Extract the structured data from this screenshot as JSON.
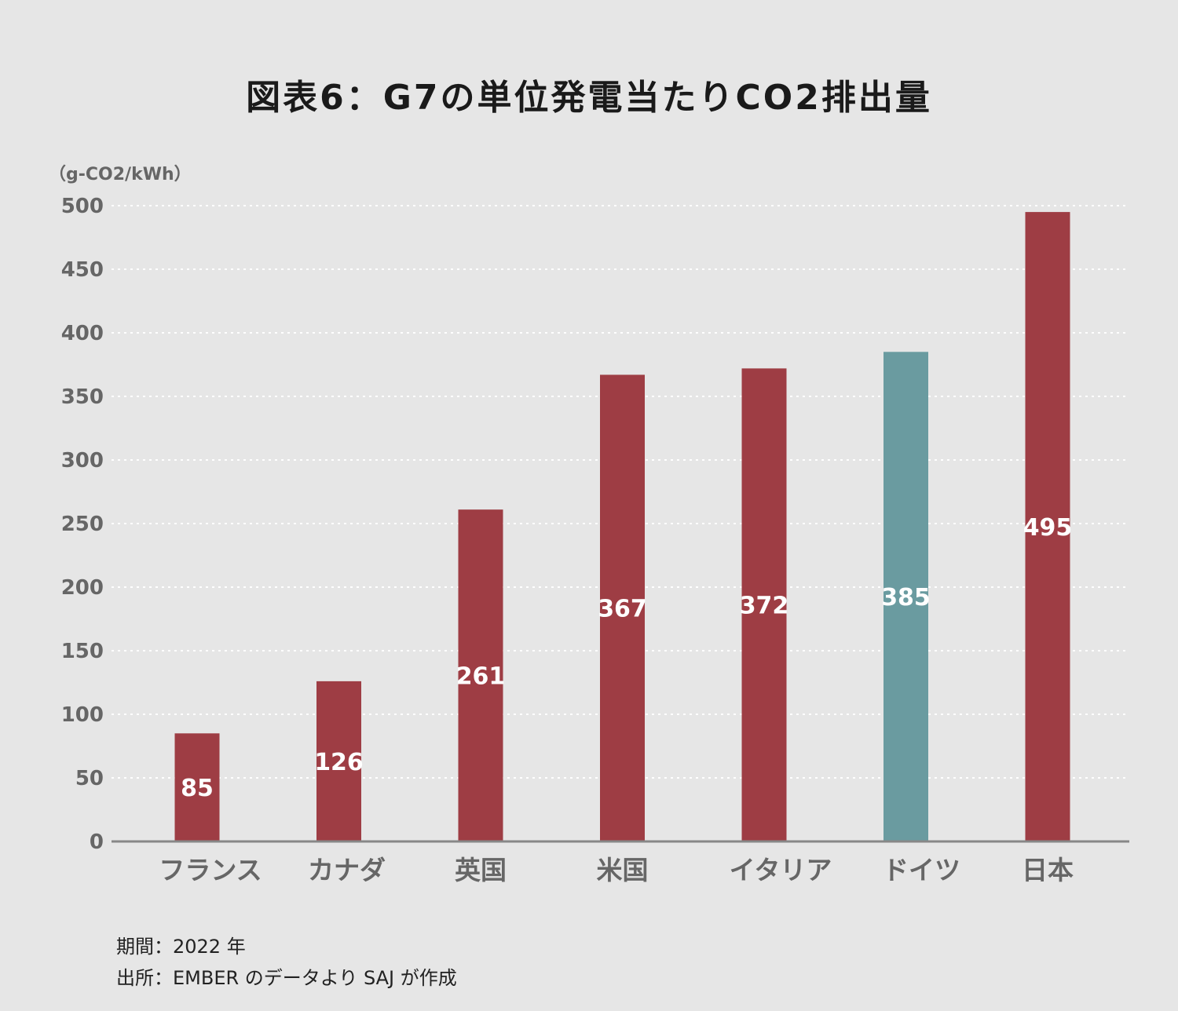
{
  "chart_data": {
    "type": "bar",
    "title": "図表6：G7の単位発電当たりCO2排出量",
    "unit_label": "（g-CO2/kWh）",
    "categories": [
      "フランス",
      "カナダ",
      "英国",
      "米国",
      "イタリア",
      "ドイツ",
      "日本"
    ],
    "values": [
      85,
      126,
      261,
      367,
      372,
      385,
      495
    ],
    "data_labels": [
      "85",
      "126",
      "261",
      "367",
      "372",
      "385",
      "495"
    ],
    "bar_colors": [
      "#9e3d44",
      "#9e3d44",
      "#9e3d44",
      "#9e3d44",
      "#9e3d44",
      "#6a9ba0",
      "#9e3d44"
    ],
    "ylim": [
      0,
      500
    ],
    "yticks": [
      0,
      50,
      100,
      150,
      200,
      250,
      300,
      350,
      400,
      450,
      500
    ],
    "grid": true,
    "grid_style": "dotted",
    "legend": "none"
  },
  "notes": {
    "period": "期間：2022 年",
    "source": "出所：EMBER のデータより SAJ が作成"
  }
}
